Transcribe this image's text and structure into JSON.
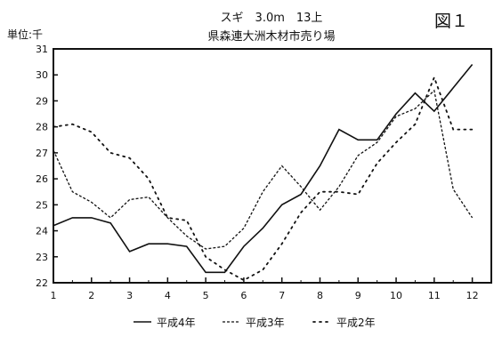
{
  "header": {
    "title_line1": "スギ　3.0m　13上",
    "title_line2": "県森連大洲木材市売り場",
    "figure_label": "図１"
  },
  "chart_data": {
    "type": "line",
    "ylabel": "単位:千",
    "xlabel": "",
    "x": [
      1,
      1.5,
      2,
      2.5,
      3,
      3.5,
      4,
      4.5,
      5,
      5.5,
      6,
      6.5,
      7,
      7.5,
      8,
      8.5,
      9,
      9.5,
      10,
      10.5,
      11,
      11.5,
      12,
      12.5
    ],
    "xticks": [
      "1",
      "2",
      "3",
      "4",
      "5",
      "6",
      "7",
      "8",
      "9",
      "10",
      "11",
      "12"
    ],
    "ylim": [
      22,
      31
    ],
    "yticks": [
      "22",
      "23",
      "24",
      "25",
      "26",
      "27",
      "28",
      "29",
      "30",
      "31"
    ],
    "grid": false,
    "legend_position": "bottom",
    "series": [
      {
        "name": "平成4年",
        "style": "solid",
        "values": [
          24.2,
          24.5,
          24.5,
          24.3,
          23.2,
          23.5,
          23.5,
          23.4,
          22.4,
          22.4,
          23.4,
          24.1,
          25.0,
          25.4,
          26.5,
          27.9,
          27.5,
          27.5,
          28.5,
          29.3,
          28.6,
          29.5,
          30.4,
          null
        ]
      },
      {
        "name": "平成3年",
        "style": "dashed",
        "values": [
          27.1,
          25.5,
          25.1,
          24.5,
          25.2,
          25.3,
          24.5,
          23.8,
          23.3,
          23.4,
          24.1,
          25.5,
          26.5,
          25.7,
          24.8,
          25.7,
          26.9,
          27.4,
          28.4,
          28.7,
          29.4,
          25.6,
          24.5,
          null
        ]
      },
      {
        "name": "平成2年",
        "style": "dotted",
        "values": [
          28.0,
          28.1,
          27.8,
          27.0,
          26.8,
          26.0,
          24.5,
          24.4,
          23.0,
          22.5,
          22.1,
          22.5,
          23.5,
          24.7,
          25.5,
          25.5,
          25.4,
          26.6,
          27.4,
          28.1,
          29.9,
          27.9,
          27.9,
          null
        ]
      }
    ]
  }
}
